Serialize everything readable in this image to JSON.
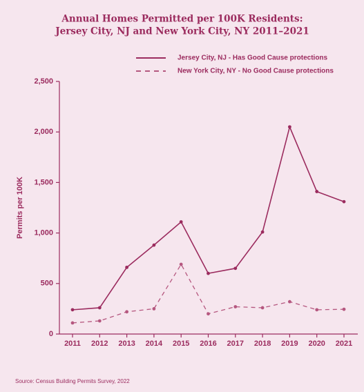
{
  "chart_data": {
    "type": "line",
    "title": [
      "Annual Homes Permitted per 100K Residents:",
      "Jersey City, NJ and New York City, NY 2011–2021"
    ],
    "y_label": "Permits per 100K",
    "source": "Source: Census Building Permits Survey, 2022",
    "categories": [
      "2011",
      "2012",
      "2013",
      "2014",
      "2015",
      "2016",
      "2017",
      "2018",
      "2019",
      "2020",
      "2021"
    ],
    "series": [
      {
        "name": "Jersey City, NJ - Has Good Cause protections",
        "color": "#9b2b5e",
        "dash": false,
        "values": [
          240,
          260,
          660,
          880,
          1110,
          600,
          650,
          1010,
          2050,
          1410,
          1310
        ]
      },
      {
        "name": "New York City, NY - No Good Cause protections",
        "color": "#b5577f",
        "dash": true,
        "values": [
          110,
          130,
          220,
          250,
          690,
          200,
          270,
          260,
          320,
          240,
          245
        ]
      }
    ],
    "ylim": [
      0,
      2500
    ],
    "yticks": [
      0,
      500,
      {
        "value": 1000,
        "label": "1,000"
      },
      {
        "value": 1500,
        "label": "1,500"
      },
      {
        "value": 2000,
        "label": "2,000"
      },
      {
        "value": 2500,
        "label": "2,500"
      }
    ],
    "legend": "top-right"
  }
}
